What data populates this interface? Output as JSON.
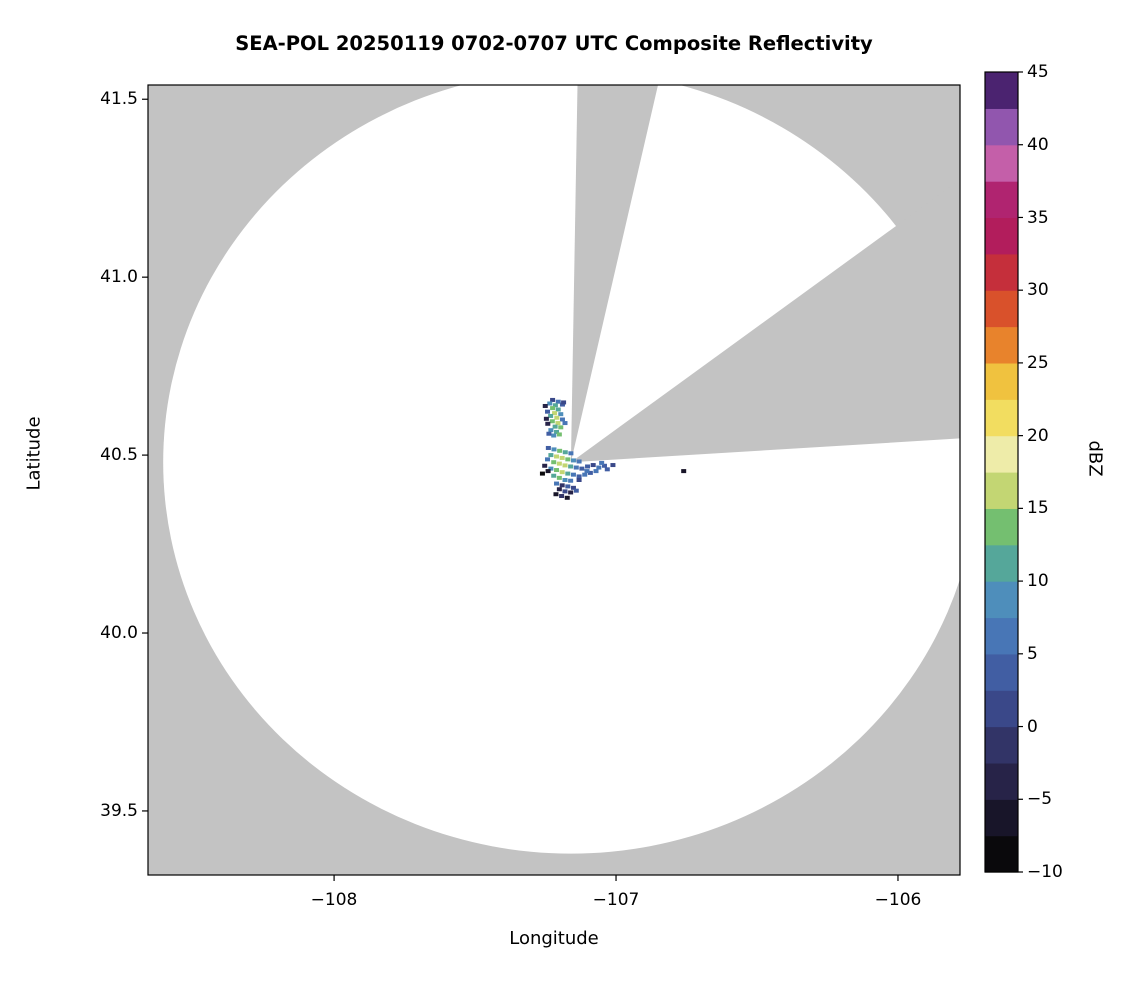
{
  "chart_data": {
    "type": "heatmap",
    "title": "SEA-POL 20250119 0702-0707 UTC Composite Reflectivity",
    "xlabel": "Longitude",
    "ylabel": "Latitude",
    "xlim": [
      -108.66,
      -105.78
    ],
    "ylim": [
      39.32,
      41.54
    ],
    "x_ticks": [
      -108,
      -107,
      -106
    ],
    "x_tick_labels": [
      "−108",
      "−107",
      "−106"
    ],
    "y_ticks": [
      39.5,
      40.0,
      40.5,
      41.0,
      41.5
    ],
    "y_tick_labels": [
      "39.5",
      "40.0",
      "40.5",
      "41.0",
      "41.5"
    ],
    "grid": false,
    "background_color": "#c3c3c3",
    "coverage_circle": {
      "center_lon": -107.16,
      "center_lat": 40.48,
      "radius_deg_lat": 1.1,
      "fill": "#ffffff"
    },
    "blocked_sectors_deg_azimuth": [
      {
        "start": 1,
        "end": 13
      },
      {
        "start": 54,
        "end": 86.5
      }
    ],
    "colorbar": {
      "label": "dBZ",
      "min": -10,
      "max": 45,
      "ticks": [
        -10,
        -5,
        0,
        5,
        10,
        15,
        20,
        25,
        30,
        35,
        40,
        45
      ],
      "tick_labels": [
        "−10",
        "−5",
        "0",
        "5",
        "10",
        "15",
        "20",
        "25",
        "30",
        "35",
        "40",
        "45"
      ],
      "colors": [
        "#0a090c",
        "#181529",
        "#272348",
        "#323467",
        "#3a4889",
        "#415ea3",
        "#4876b6",
        "#4e8ebb",
        "#55a79a",
        "#74bf70",
        "#c3d673",
        "#eeeca9",
        "#f2dd60",
        "#f0c23f",
        "#e8832c",
        "#d9512b",
        "#c52f3b",
        "#b21d5c",
        "#b02470",
        "#c45fa9",
        "#9156ae",
        "#4b2370"
      ]
    },
    "echoes_lon_lat_dbz": [
      [
        -107.225,
        40.655,
        2
      ],
      [
        -107.205,
        40.65,
        6
      ],
      [
        -107.235,
        40.645,
        9
      ],
      [
        -107.215,
        40.64,
        12
      ],
      [
        -107.19,
        40.642,
        4
      ],
      [
        -107.225,
        40.632,
        14
      ],
      [
        -107.205,
        40.628,
        10
      ],
      [
        -107.243,
        40.622,
        3
      ],
      [
        -107.218,
        40.618,
        16
      ],
      [
        -107.196,
        40.615,
        9
      ],
      [
        -107.232,
        40.61,
        12
      ],
      [
        -107.21,
        40.605,
        15
      ],
      [
        -107.19,
        40.6,
        7
      ],
      [
        -107.226,
        40.595,
        13
      ],
      [
        -107.206,
        40.59,
        16
      ],
      [
        -107.242,
        40.588,
        -3
      ],
      [
        -107.216,
        40.58,
        11
      ],
      [
        -107.196,
        40.578,
        14
      ],
      [
        -107.231,
        40.57,
        9
      ],
      [
        -107.211,
        40.565,
        12
      ],
      [
        -107.251,
        40.638,
        -4
      ],
      [
        -107.186,
        40.648,
        1
      ],
      [
        -107.247,
        40.602,
        -5
      ],
      [
        -107.181,
        40.59,
        5
      ],
      [
        -107.221,
        40.555,
        8
      ],
      [
        -107.201,
        40.558,
        13
      ],
      [
        -107.238,
        40.56,
        4
      ],
      [
        -107.24,
        40.52,
        3
      ],
      [
        -107.22,
        40.516,
        9
      ],
      [
        -107.2,
        40.512,
        13
      ],
      [
        -107.18,
        40.508,
        11
      ],
      [
        -107.16,
        40.505,
        6
      ],
      [
        -107.231,
        40.5,
        12
      ],
      [
        -107.211,
        40.496,
        15
      ],
      [
        -107.191,
        40.492,
        17
      ],
      [
        -107.171,
        40.488,
        14
      ],
      [
        -107.151,
        40.485,
        8
      ],
      [
        -107.131,
        40.482,
        5
      ],
      [
        -107.243,
        40.488,
        7
      ],
      [
        -107.221,
        40.48,
        13
      ],
      [
        -107.201,
        40.476,
        16
      ],
      [
        -107.181,
        40.471,
        15
      ],
      [
        -107.161,
        40.468,
        10
      ],
      [
        -107.141,
        40.465,
        6
      ],
      [
        -107.121,
        40.462,
        3
      ],
      [
        -107.101,
        40.468,
        4
      ],
      [
        -107.081,
        40.472,
        2
      ],
      [
        -107.061,
        40.465,
        5
      ],
      [
        -107.041,
        40.47,
        3
      ],
      [
        -107.253,
        40.47,
        -5
      ],
      [
        -107.231,
        40.462,
        8
      ],
      [
        -107.211,
        40.458,
        14
      ],
      [
        -107.191,
        40.452,
        16
      ],
      [
        -107.171,
        40.448,
        12
      ],
      [
        -107.151,
        40.445,
        7
      ],
      [
        -107.131,
        40.44,
        4
      ],
      [
        -107.111,
        40.445,
        6
      ],
      [
        -107.091,
        40.45,
        3
      ],
      [
        -107.221,
        40.442,
        10
      ],
      [
        -107.201,
        40.436,
        13
      ],
      [
        -107.181,
        40.43,
        9
      ],
      [
        -107.161,
        40.428,
        5
      ],
      [
        -107.241,
        40.455,
        -6
      ],
      [
        -107.261,
        40.448,
        -8
      ],
      [
        -107.211,
        40.42,
        7
      ],
      [
        -107.191,
        40.415,
        -2
      ],
      [
        -107.171,
        40.412,
        4
      ],
      [
        -107.151,
        40.408,
        2
      ],
      [
        -107.201,
        40.404,
        -4
      ],
      [
        -107.181,
        40.398,
        1
      ],
      [
        -107.161,
        40.395,
        -3
      ],
      [
        -107.141,
        40.4,
        3
      ],
      [
        -107.213,
        40.39,
        -6
      ],
      [
        -107.193,
        40.385,
        -2
      ],
      [
        -107.173,
        40.38,
        -7
      ],
      [
        -107.131,
        40.43,
        2
      ],
      [
        -107.103,
        40.455,
        5
      ],
      [
        -107.051,
        40.478,
        6
      ],
      [
        -107.031,
        40.46,
        4
      ],
      [
        -107.011,
        40.472,
        2
      ],
      [
        -107.071,
        40.455,
        7
      ],
      [
        -106.76,
        40.455,
        -7
      ]
    ]
  }
}
